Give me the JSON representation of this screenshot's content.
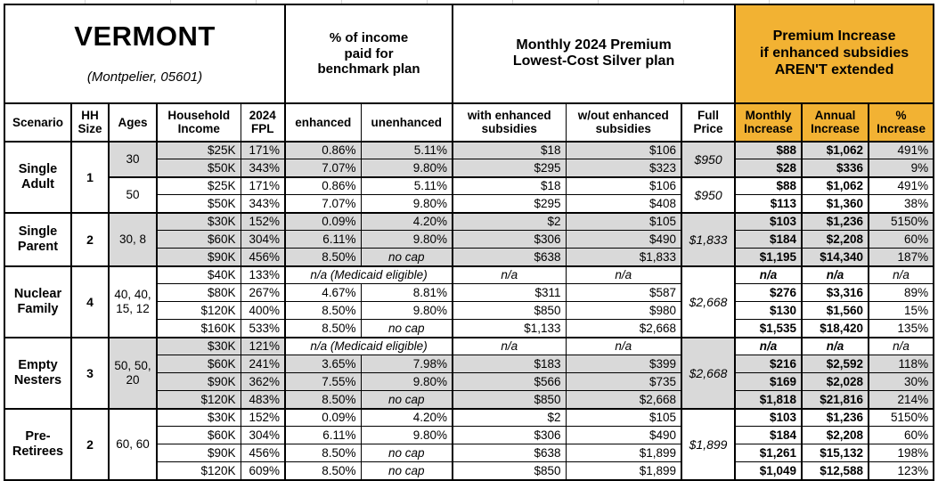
{
  "colors": {
    "header_accent": "#F2B233",
    "shaded_row": "#D9D9D9",
    "border": "#000000"
  },
  "chart_data": {
    "type": "table",
    "title": "VERMONT",
    "subtitle": "(Montpelier, 05601)",
    "column_groups": [
      {
        "label": "",
        "span": 5
      },
      {
        "label": "% of income\npaid for\nbenchmark plan",
        "span": 2
      },
      {
        "label": "Monthly 2024 Premium\nLowest-Cost Silver plan",
        "span": 3
      },
      {
        "label": "Premium Increase\nif enhanced subsidies\nAREN'T extended",
        "span": 3,
        "highlight": true
      }
    ],
    "columns": [
      "Scenario",
      "HH\nSize",
      "Ages",
      "Household\nIncome",
      "2024\nFPL",
      "enhanced",
      "unenhanced",
      "with enhanced\nsubsidies",
      "w/out enhanced\nsubsidies",
      "Full\nPrice",
      "Monthly\nIncrease",
      "Annual\nIncrease",
      "%\nIncrease"
    ],
    "groups": [
      {
        "scenario": "Single\nAdult",
        "hh_size": "1",
        "age_blocks": [
          {
            "ages": "30",
            "shaded": true,
            "full_price": "$950",
            "rows": [
              {
                "income": "$25K",
                "fpl": "171%",
                "enhanced": "0.86%",
                "unenhanced": "5.11%",
                "with_sub": "$18",
                "wo_sub": "$106",
                "monthly": "$88",
                "annual": "$1,062",
                "pct": "491%"
              },
              {
                "income": "$50K",
                "fpl": "343%",
                "enhanced": "7.07%",
                "unenhanced": "9.80%",
                "with_sub": "$295",
                "wo_sub": "$323",
                "monthly": "$28",
                "annual": "$336",
                "pct": "9%"
              }
            ]
          },
          {
            "ages": "50",
            "shaded": false,
            "full_price": "$950",
            "rows": [
              {
                "income": "$25K",
                "fpl": "171%",
                "enhanced": "0.86%",
                "unenhanced": "5.11%",
                "with_sub": "$18",
                "wo_sub": "$106",
                "monthly": "$88",
                "annual": "$1,062",
                "pct": "491%"
              },
              {
                "income": "$50K",
                "fpl": "343%",
                "enhanced": "7.07%",
                "unenhanced": "9.80%",
                "with_sub": "$295",
                "wo_sub": "$408",
                "monthly": "$113",
                "annual": "$1,360",
                "pct": "38%"
              }
            ]
          }
        ]
      },
      {
        "scenario": "Single\nParent",
        "hh_size": "2",
        "age_blocks": [
          {
            "ages": "30, 8",
            "shaded": true,
            "full_price": "$1,833",
            "rows": [
              {
                "income": "$30K",
                "fpl": "152%",
                "enhanced": "0.09%",
                "unenhanced": "4.20%",
                "with_sub": "$2",
                "wo_sub": "$105",
                "monthly": "$103",
                "annual": "$1,236",
                "pct": "5150%"
              },
              {
                "income": "$60K",
                "fpl": "304%",
                "enhanced": "6.11%",
                "unenhanced": "9.80%",
                "with_sub": "$306",
                "wo_sub": "$490",
                "monthly": "$184",
                "annual": "$2,208",
                "pct": "60%"
              },
              {
                "income": "$90K",
                "fpl": "456%",
                "enhanced": "8.50%",
                "unenhanced": "no cap",
                "with_sub": "$638",
                "wo_sub": "$1,833",
                "monthly": "$1,195",
                "annual": "$14,340",
                "pct": "187%"
              }
            ]
          }
        ]
      },
      {
        "scenario": "Nuclear\nFamily",
        "hh_size": "4",
        "age_blocks": [
          {
            "ages": "40, 40,\n15, 12",
            "shaded": false,
            "full_price": "$2,668",
            "rows": [
              {
                "income": "$40K",
                "fpl": "133%",
                "medicaid": "n/a (Medicaid eligible)",
                "with_sub": "n/a",
                "wo_sub": "n/a",
                "monthly": "n/a",
                "annual": "n/a",
                "pct": "n/a"
              },
              {
                "income": "$80K",
                "fpl": "267%",
                "enhanced": "4.67%",
                "unenhanced": "8.81%",
                "with_sub": "$311",
                "wo_sub": "$587",
                "monthly": "$276",
                "annual": "$3,316",
                "pct": "89%"
              },
              {
                "income": "$120K",
                "fpl": "400%",
                "enhanced": "8.50%",
                "unenhanced": "9.80%",
                "with_sub": "$850",
                "wo_sub": "$980",
                "monthly": "$130",
                "annual": "$1,560",
                "pct": "15%"
              },
              {
                "income": "$160K",
                "fpl": "533%",
                "enhanced": "8.50%",
                "unenhanced": "no cap",
                "with_sub": "$1,133",
                "wo_sub": "$2,668",
                "monthly": "$1,535",
                "annual": "$18,420",
                "pct": "135%"
              }
            ]
          }
        ]
      },
      {
        "scenario": "Empty\nNesters",
        "hh_size": "3",
        "age_blocks": [
          {
            "ages": "50, 50,\n20",
            "shaded": true,
            "full_price": "$2,668",
            "rows": [
              {
                "income": "$30K",
                "fpl": "121%",
                "medicaid": "n/a (Medicaid eligible)",
                "with_sub": "n/a",
                "wo_sub": "n/a",
                "monthly": "n/a",
                "annual": "n/a",
                "pct": "n/a"
              },
              {
                "income": "$60K",
                "fpl": "241%",
                "enhanced": "3.65%",
                "unenhanced": "7.98%",
                "with_sub": "$183",
                "wo_sub": "$399",
                "monthly": "$216",
                "annual": "$2,592",
                "pct": "118%"
              },
              {
                "income": "$90K",
                "fpl": "362%",
                "enhanced": "7.55%",
                "unenhanced": "9.80%",
                "with_sub": "$566",
                "wo_sub": "$735",
                "monthly": "$169",
                "annual": "$2,028",
                "pct": "30%"
              },
              {
                "income": "$120K",
                "fpl": "483%",
                "enhanced": "8.50%",
                "unenhanced": "no cap",
                "with_sub": "$850",
                "wo_sub": "$2,668",
                "monthly": "$1,818",
                "annual": "$21,816",
                "pct": "214%"
              }
            ]
          }
        ]
      },
      {
        "scenario": "Pre-\nRetirees",
        "hh_size": "2",
        "age_blocks": [
          {
            "ages": "60, 60",
            "shaded": false,
            "full_price": "$1,899",
            "rows": [
              {
                "income": "$30K",
                "fpl": "152%",
                "enhanced": "0.09%",
                "unenhanced": "4.20%",
                "with_sub": "$2",
                "wo_sub": "$105",
                "monthly": "$103",
                "annual": "$1,236",
                "pct": "5150%"
              },
              {
                "income": "$60K",
                "fpl": "304%",
                "enhanced": "6.11%",
                "unenhanced": "9.80%",
                "with_sub": "$306",
                "wo_sub": "$490",
                "monthly": "$184",
                "annual": "$2,208",
                "pct": "60%"
              },
              {
                "income": "$90K",
                "fpl": "456%",
                "enhanced": "8.50%",
                "unenhanced": "no cap",
                "with_sub": "$638",
                "wo_sub": "$1,899",
                "monthly": "$1,261",
                "annual": "$15,132",
                "pct": "198%"
              },
              {
                "income": "$120K",
                "fpl": "609%",
                "enhanced": "8.50%",
                "unenhanced": "no cap",
                "with_sub": "$850",
                "wo_sub": "$1,899",
                "monthly": "$1,049",
                "annual": "$12,588",
                "pct": "123%"
              }
            ]
          }
        ]
      }
    ]
  }
}
